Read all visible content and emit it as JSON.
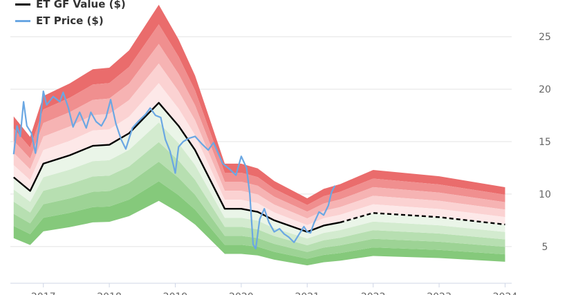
{
  "legend": {
    "gf_label": "ET GF Value ($)",
    "gf_color": "#000000",
    "price_label": "ET Price ($)",
    "price_color": "#6aa7e3"
  },
  "chart_data": {
    "type": "area",
    "title": "",
    "xlabel": "",
    "ylabel": "",
    "ylim": [
      1.5,
      28.5
    ],
    "xlim": [
      2016.5,
      2024.1
    ],
    "y_ticks": [
      5,
      10,
      15,
      20,
      25
    ],
    "x_ticks": [
      2017,
      2018,
      2019,
      2020,
      2021,
      2022,
      2023,
      2024
    ],
    "grid": true,
    "legend_position": "top-left",
    "gf_value": {
      "name": "ET GF Value ($)",
      "dashed_from": 2021.5,
      "points": [
        [
          2016.55,
          11.6
        ],
        [
          2016.8,
          10.3
        ],
        [
          2017.0,
          12.9
        ],
        [
          2017.4,
          13.7
        ],
        [
          2017.75,
          14.6
        ],
        [
          2018.0,
          14.7
        ],
        [
          2018.3,
          15.8
        ],
        [
          2018.75,
          18.7
        ],
        [
          2019.05,
          16.5
        ],
        [
          2019.3,
          14.2
        ],
        [
          2019.75,
          8.6
        ],
        [
          2020.0,
          8.6
        ],
        [
          2020.25,
          8.3
        ],
        [
          2020.5,
          7.5
        ],
        [
          2021.0,
          6.4
        ],
        [
          2021.25,
          7.0
        ],
        [
          2021.5,
          7.3
        ],
        [
          2022.0,
          8.2
        ],
        [
          2023.0,
          7.8
        ],
        [
          2024.0,
          7.1
        ]
      ],
      "band_upper_factors": [
        1.1,
        1.2,
        1.3,
        1.4,
        1.5
      ],
      "band_lower_factors": [
        0.9,
        0.8,
        0.7,
        0.6,
        0.5
      ],
      "upper_colors": [
        "#fde8e8",
        "#fbd2d2",
        "#f6b3b3",
        "#f08f8f",
        "#ea6c6c"
      ],
      "lower_colors": [
        "#eaf5e8",
        "#d3ebcf",
        "#b7dfb1",
        "#9dd395",
        "#85c97b"
      ]
    },
    "price": {
      "name": "ET Price ($)",
      "points": [
        [
          2016.55,
          13.8
        ],
        [
          2016.6,
          16.5
        ],
        [
          2016.65,
          15.5
        ],
        [
          2016.7,
          18.8
        ],
        [
          2016.75,
          16.5
        ],
        [
          2016.82,
          15.8
        ],
        [
          2016.88,
          13.9
        ],
        [
          2016.95,
          17.0
        ],
        [
          2017.0,
          19.8
        ],
        [
          2017.05,
          18.5
        ],
        [
          2017.15,
          19.3
        ],
        [
          2017.25,
          18.8
        ],
        [
          2017.3,
          19.7
        ],
        [
          2017.38,
          18.2
        ],
        [
          2017.45,
          16.4
        ],
        [
          2017.55,
          17.8
        ],
        [
          2017.65,
          16.3
        ],
        [
          2017.72,
          17.8
        ],
        [
          2017.8,
          16.9
        ],
        [
          2017.88,
          16.5
        ],
        [
          2017.95,
          17.3
        ],
        [
          2018.02,
          19.0
        ],
        [
          2018.1,
          16.7
        ],
        [
          2018.18,
          15.2
        ],
        [
          2018.25,
          14.3
        ],
        [
          2018.35,
          16.3
        ],
        [
          2018.45,
          17.0
        ],
        [
          2018.55,
          17.6
        ],
        [
          2018.62,
          18.2
        ],
        [
          2018.7,
          17.5
        ],
        [
          2018.78,
          17.3
        ],
        [
          2018.85,
          15.2
        ],
        [
          2018.92,
          14.1
        ],
        [
          2019.0,
          12.0
        ],
        [
          2019.05,
          14.5
        ],
        [
          2019.12,
          15.0
        ],
        [
          2019.2,
          15.3
        ],
        [
          2019.3,
          15.5
        ],
        [
          2019.4,
          14.8
        ],
        [
          2019.5,
          14.2
        ],
        [
          2019.58,
          14.9
        ],
        [
          2019.65,
          13.9
        ],
        [
          2019.72,
          12.9
        ],
        [
          2019.82,
          12.4
        ],
        [
          2019.92,
          11.8
        ],
        [
          2020.0,
          13.6
        ],
        [
          2020.08,
          12.5
        ],
        [
          2020.13,
          10.0
        ],
        [
          2020.18,
          5.2
        ],
        [
          2020.22,
          4.8
        ],
        [
          2020.28,
          7.6
        ],
        [
          2020.35,
          8.6
        ],
        [
          2020.42,
          7.3
        ],
        [
          2020.5,
          6.4
        ],
        [
          2020.58,
          6.7
        ],
        [
          2020.65,
          6.2
        ],
        [
          2020.72,
          5.9
        ],
        [
          2020.8,
          5.4
        ],
        [
          2020.88,
          6.2
        ],
        [
          2020.95,
          6.9
        ],
        [
          2021.0,
          6.4
        ],
        [
          2021.05,
          6.3
        ],
        [
          2021.1,
          7.2
        ],
        [
          2021.18,
          8.3
        ],
        [
          2021.25,
          8.0
        ],
        [
          2021.32,
          8.9
        ],
        [
          2021.37,
          10.2
        ],
        [
          2021.42,
          10.8
        ]
      ]
    }
  }
}
